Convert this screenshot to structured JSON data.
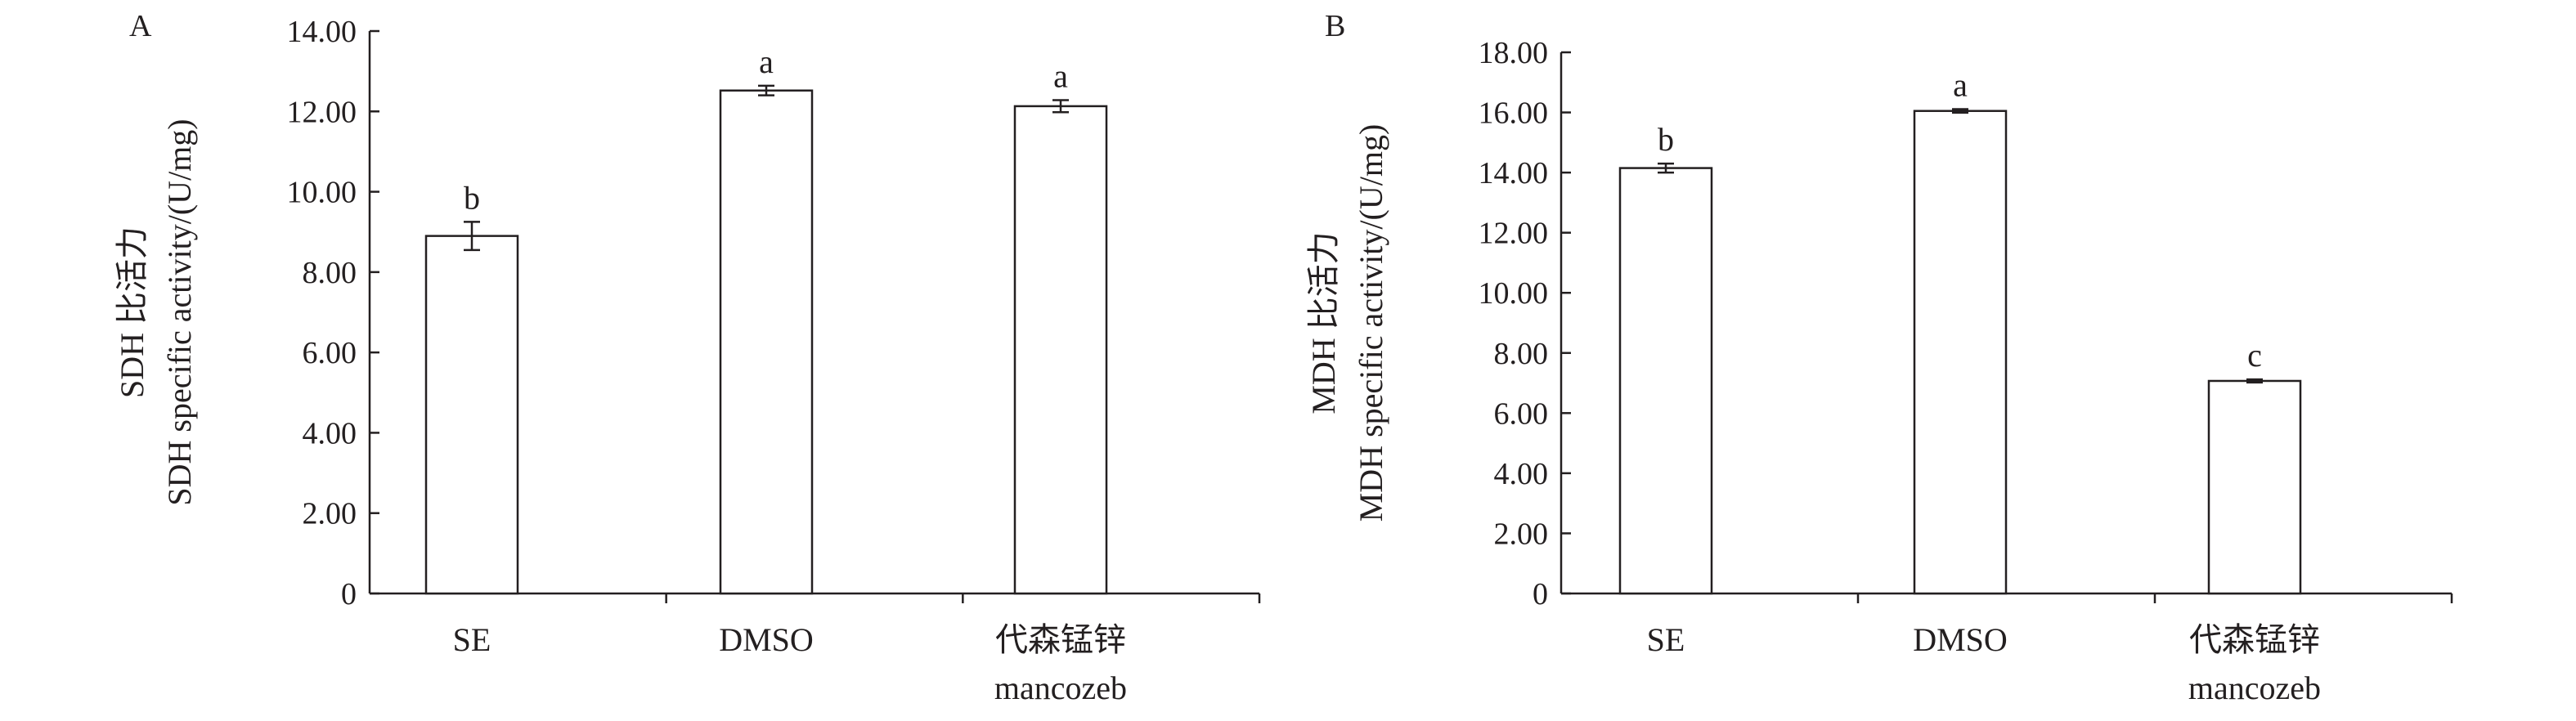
{
  "chart_data": [
    {
      "type": "bar",
      "panel_label": "A",
      "categories": [
        "SE",
        "DMSO",
        "代森锰锌"
      ],
      "category_sublabels": [
        "",
        "",
        "mancozeb"
      ],
      "values": [
        8.9,
        12.52,
        12.13
      ],
      "errors": [
        0.35,
        0.12,
        0.15
      ],
      "significance": [
        "b",
        "a",
        "a"
      ],
      "ylabel_lines": [
        "SDH 比活力",
        "SDH specific activity/(U/mg)"
      ],
      "yticks": [
        "0",
        "2.00",
        "4.00",
        "6.00",
        "8.00",
        "10.00",
        "12.00",
        "14.00"
      ],
      "ylim": [
        0,
        14
      ],
      "grid": false
    },
    {
      "type": "bar",
      "panel_label": "B",
      "categories": [
        "SE",
        "DMSO",
        "代森锰锌"
      ],
      "category_sublabels": [
        "",
        "",
        "mancozeb"
      ],
      "values": [
        14.15,
        16.05,
        7.07
      ],
      "errors": [
        0.15,
        0.06,
        0.05
      ],
      "significance": [
        "b",
        "a",
        "c"
      ],
      "ylabel_lines": [
        "MDH 比活力",
        "MDH specific activity/(U/mg)"
      ],
      "yticks": [
        "0",
        "2.00",
        "4.00",
        "6.00",
        "8.00",
        "10.00",
        "12.00",
        "14.00",
        "16.00",
        "18.00"
      ],
      "ylim": [
        0,
        18
      ],
      "grid": false
    }
  ]
}
